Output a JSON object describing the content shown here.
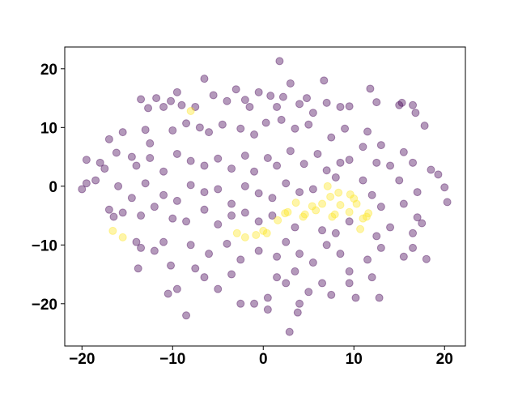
{
  "chart_data": {
    "type": "scatter",
    "xlim": [
      -21.9,
      22.3
    ],
    "ylim": [
      -27.2,
      23.7
    ],
    "xticks": [
      {
        "value": -20,
        "label": "−20"
      },
      {
        "value": -10,
        "label": "−10"
      },
      0,
      10,
      20
    ],
    "yticks": [
      {
        "value": -20,
        "label": "−20"
      },
      {
        "value": -10,
        "label": "−10"
      },
      0,
      10,
      20
    ],
    "grid": false,
    "opacity": 0.4,
    "series": [
      {
        "color": "#440154",
        "x": [
          -13.5,
          -12.7,
          -11.8,
          -11,
          -10.2,
          -9.5,
          -9,
          -7.5,
          -5.5,
          -4,
          -3,
          -2,
          -1.5,
          -0.5,
          0.8,
          1.5,
          2.2,
          3,
          4,
          4.8,
          5.5,
          7,
          8.5,
          9.5,
          11.8,
          12.5,
          15,
          15.3,
          16.5,
          16.8,
          17.8,
          -17,
          -15.5,
          -13,
          -12.5,
          -10,
          -8.5,
          -7,
          -6,
          -4.5,
          -2.5,
          -1,
          0.3,
          2,
          3.5,
          5,
          7.5,
          9,
          11.5,
          13,
          -18,
          -17.5,
          -16.2,
          -14.5,
          -14,
          -12.5,
          -11,
          -9.5,
          -8,
          -6.5,
          -5,
          -3.5,
          -2,
          -1,
          0.5,
          1.5,
          3,
          4.5,
          6,
          7,
          8.5,
          9.5,
          11,
          12.5,
          14,
          15.5,
          16.5,
          18.5,
          -19.5,
          -18.5,
          -16,
          -14.5,
          -13,
          -11,
          -9.5,
          -8,
          -6.5,
          -5,
          -3.5,
          -2,
          -0.5,
          1,
          2.5,
          4,
          5.5,
          8,
          11,
          12,
          13,
          15,
          15.5,
          17,
          -17,
          -16.5,
          -15.5,
          -13.5,
          -12,
          -10,
          -8.5,
          -6.5,
          -5,
          -3.5,
          -2,
          -0.5,
          1,
          3.5,
          6.5,
          8,
          9.5,
          12.5,
          14,
          16.5,
          17,
          17.5,
          -14,
          -13.5,
          -12,
          -11,
          -10.2,
          -8,
          -7.5,
          -6,
          -4,
          -2.5,
          -0.5,
          1.5,
          2.5,
          4,
          5.5,
          7,
          8.5,
          9.5,
          11.5,
          13,
          15.5,
          16.5,
          18,
          -13.8,
          -10.5,
          -9.5,
          -6.5,
          -5,
          -3.5,
          -2.5,
          -1,
          0.5,
          1.5,
          2.5,
          3.5,
          4,
          5,
          6.5,
          7.5,
          9.5,
          10.2,
          12,
          12.8,
          0.5,
          3.8,
          2.9,
          -8.5,
          1.8,
          -6.5,
          6.7,
          -20,
          20.3,
          20,
          19.3,
          -19.5
        ],
        "y": [
          14.8,
          13.3,
          15,
          13.5,
          14.5,
          16,
          13.8,
          13.5,
          15.5,
          14.5,
          16.5,
          14.7,
          13.5,
          16,
          15.4,
          13.5,
          15.2,
          17.5,
          14,
          15,
          12.5,
          14.2,
          13.5,
          13.6,
          16.6,
          14.3,
          13.8,
          14.2,
          13.8,
          12.5,
          10.3,
          8,
          9.2,
          9.6,
          7.3,
          9.5,
          10.7,
          10,
          9.2,
          10.5,
          9.8,
          8.8,
          10.8,
          11.3,
          9.8,
          10.5,
          8.3,
          9.8,
          9.3,
          7,
          4,
          3,
          5.7,
          5,
          3.5,
          4.8,
          2.5,
          5.5,
          4.3,
          3.5,
          4.7,
          3,
          5.2,
          2.5,
          4.8,
          3.5,
          6,
          3.8,
          5.5,
          2.7,
          4,
          4.5,
          6.7,
          4,
          3.5,
          5.8,
          4,
          2.8,
          0.5,
          1,
          0,
          -2,
          0.5,
          -1.5,
          -2.5,
          0.2,
          -1,
          -0.5,
          -3,
          0,
          -1.2,
          -2,
          0.5,
          -1,
          -0.5,
          1.5,
          1,
          -1.5,
          -3.5,
          1,
          -3,
          -1,
          -4,
          -5.2,
          -4.5,
          -5,
          -3.5,
          -5.5,
          -6,
          -4,
          -6.5,
          -5,
          -4.5,
          -6,
          -5,
          -7,
          -7.5,
          -8,
          -6,
          -8.5,
          -7,
          -8,
          -5.3,
          -6.3,
          -9.5,
          -10.5,
          -11,
          -9.5,
          -13.5,
          -10,
          -14,
          -11.5,
          -9.8,
          -12.5,
          -11,
          -12,
          -9.5,
          -11.5,
          -13,
          -10,
          -11.5,
          -14.5,
          -12.5,
          -10.5,
          -12,
          -10.5,
          -12.4,
          -14,
          -18.3,
          -17.5,
          -15.5,
          -17.5,
          -15,
          -20,
          -20,
          -19,
          -15.5,
          -16.5,
          -14.5,
          -20,
          -18,
          -16.5,
          -18.5,
          -16.5,
          -19,
          -15.5,
          -19,
          -21,
          -21.5,
          -24.8,
          -22,
          21.3,
          18.3,
          18,
          -0.5,
          -2.7,
          -0.2,
          2,
          4.5
        ]
      },
      {
        "color": "#fde725",
        "x": [
          -8,
          -16.6,
          -15.5,
          -2.9,
          -2,
          -0.8,
          0,
          0.4,
          1.6,
          2.4,
          2.7,
          3.6,
          4.4,
          4.6,
          5.4,
          5.8,
          6.5,
          7.1,
          7.4,
          7.6,
          7.9,
          8.5,
          9.5,
          9.6,
          10,
          10.3,
          10.7,
          11,
          11.4,
          11.6,
          8.3
        ],
        "y": [
          12.8,
          -7.6,
          -8.7,
          -8,
          -8.7,
          -8.3,
          -7.6,
          -8,
          -5.8,
          -4.6,
          -4.4,
          -2.8,
          -5.2,
          -4.8,
          -3.4,
          -4.1,
          -3,
          0,
          -1.8,
          -5.2,
          -4.8,
          -3.2,
          -4.4,
          -1.4,
          -2.1,
          -3,
          -7.3,
          -5.5,
          -5.2,
          -4.6,
          -1.1
        ]
      }
    ]
  }
}
